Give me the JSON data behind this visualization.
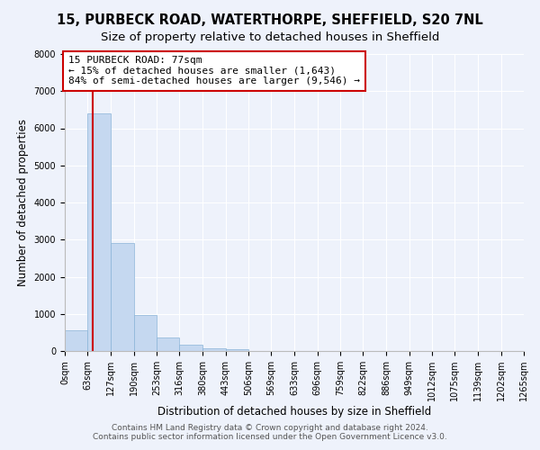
{
  "title_line1": "15, PURBECK ROAD, WATERTHORPE, SHEFFIELD, S20 7NL",
  "title_line2": "Size of property relative to detached houses in Sheffield",
  "xlabel": "Distribution of detached houses by size in Sheffield",
  "ylabel": "Number of detached properties",
  "bar_edges": [
    0,
    63,
    127,
    190,
    253,
    316,
    380,
    443,
    506,
    569,
    633,
    696,
    759,
    822,
    886,
    949,
    1012,
    1075,
    1139,
    1202,
    1265
  ],
  "bar_heights": [
    550,
    6400,
    2920,
    970,
    370,
    160,
    80,
    60,
    0,
    0,
    0,
    0,
    0,
    0,
    0,
    0,
    0,
    0,
    0,
    0
  ],
  "bar_color": "#c5d8f0",
  "bar_edgecolor": "#8ab4d8",
  "property_line_x": 77,
  "property_line_color": "#cc0000",
  "annotation_text": "15 PURBECK ROAD: 77sqm\n← 15% of detached houses are smaller (1,643)\n84% of semi-detached houses are larger (9,546) →",
  "annotation_box_edgecolor": "#cc0000",
  "annotation_box_facecolor": "#ffffff",
  "ylim": [
    0,
    8000
  ],
  "yticks": [
    0,
    1000,
    2000,
    3000,
    4000,
    5000,
    6000,
    7000,
    8000
  ],
  "tick_labels": [
    "0sqm",
    "63sqm",
    "127sqm",
    "190sqm",
    "253sqm",
    "316sqm",
    "380sqm",
    "443sqm",
    "506sqm",
    "569sqm",
    "633sqm",
    "696sqm",
    "759sqm",
    "822sqm",
    "886sqm",
    "949sqm",
    "1012sqm",
    "1075sqm",
    "1139sqm",
    "1202sqm",
    "1265sqm"
  ],
  "footer_line1": "Contains HM Land Registry data © Crown copyright and database right 2024.",
  "footer_line2": "Contains public sector information licensed under the Open Government Licence v3.0.",
  "background_color": "#eef2fb",
  "grid_color": "#ffffff",
  "title_fontsize": 10.5,
  "subtitle_fontsize": 9.5,
  "axis_label_fontsize": 8.5,
  "tick_fontsize": 7,
  "footer_fontsize": 6.5,
  "annotation_fontsize": 8
}
